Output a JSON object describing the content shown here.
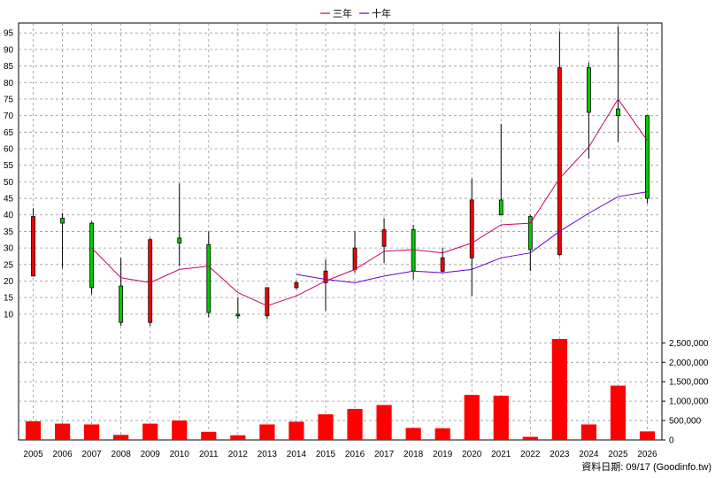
{
  "chart_data": {
    "type": "candlestick-with-volume",
    "source_label": "資料日期: 09/17  (Goodinfo.tw)",
    "legend": [
      {
        "name": "三年",
        "color": "#cc0066"
      },
      {
        "name": "十年",
        "color": "#6600cc"
      }
    ],
    "colors": {
      "up": "#ff0000",
      "down": "#00cc00",
      "volume": "#ff0000",
      "grid": "#999999"
    },
    "years": [
      "2005",
      "2006",
      "2007",
      "2008",
      "2009",
      "2010",
      "2011",
      "2012",
      "2013",
      "2014",
      "2015",
      "2016",
      "2017",
      "2018",
      "2019",
      "2020",
      "2021",
      "2022",
      "2023",
      "2024",
      "2025",
      "2026"
    ],
    "price_axis": {
      "min": 3,
      "max": 98,
      "ticks": [
        10,
        15,
        20,
        25,
        30,
        35,
        40,
        45,
        50,
        55,
        60,
        65,
        70,
        75,
        80,
        85,
        90,
        95
      ],
      "grid": true
    },
    "volume_axis": {
      "min": 0,
      "max": 2600000,
      "ticks": [
        0,
        500000,
        1000000,
        1500000,
        2000000,
        2500000
      ],
      "tick_labels": [
        "0",
        "500,000",
        "1,000,000",
        "1,500,000",
        "2,000,000",
        "2,500,000"
      ]
    },
    "candles": [
      {
        "year": "2005",
        "open": 21.5,
        "close": 39.5,
        "high": 42,
        "low": 21.5
      },
      {
        "year": "2006",
        "open": 39,
        "close": 37.5,
        "high": 40.5,
        "low": 24
      },
      {
        "year": "2007",
        "open": 37.5,
        "close": 18,
        "high": 38,
        "low": 16
      },
      {
        "year": "2008",
        "open": 18.5,
        "close": 7.5,
        "high": 27,
        "low": 6.5
      },
      {
        "year": "2009",
        "open": 7.5,
        "close": 32.5,
        "high": 33,
        "low": 6.5
      },
      {
        "year": "2010",
        "open": 33,
        "close": 31.5,
        "high": 49.5,
        "low": 24.5
      },
      {
        "year": "2011",
        "open": 31,
        "close": 10.5,
        "high": 35,
        "low": 9
      },
      {
        "year": "2012",
        "open": 10,
        "close": 9.5,
        "high": 15,
        "low": 8.5
      },
      {
        "year": "2013",
        "open": 9.5,
        "close": 18,
        "high": 18,
        "low": 8.5
      },
      {
        "year": "2014",
        "open": 18,
        "close": 19.5,
        "high": 20,
        "low": 17.5
      },
      {
        "year": "2015",
        "open": 19.5,
        "close": 23,
        "high": 26.5,
        "low": 11
      },
      {
        "year": "2016",
        "open": 23.5,
        "close": 30,
        "high": 35,
        "low": 22.5
      },
      {
        "year": "2017",
        "open": 30.5,
        "close": 35.5,
        "high": 39,
        "low": 25.5
      },
      {
        "year": "2018",
        "open": 35.5,
        "close": 23,
        "high": 37,
        "low": 20.5
      },
      {
        "year": "2019",
        "open": 23,
        "close": 27,
        "high": 30,
        "low": 22.5
      },
      {
        "year": "2020",
        "open": 27,
        "close": 44.5,
        "high": 51,
        "low": 15.5
      },
      {
        "year": "2021",
        "open": 44.5,
        "close": 40,
        "high": 67.5,
        "low": 40
      },
      {
        "year": "2022",
        "open": 39.5,
        "close": 29.5,
        "high": 40,
        "low": 23
      },
      {
        "year": "2023",
        "open": 28,
        "close": 84.5,
        "high": 95.5,
        "low": 27.5
      },
      {
        "year": "2024",
        "open": 84.5,
        "close": 71,
        "high": 86,
        "low": 57
      },
      {
        "year": "2025",
        "open": 72,
        "close": 70,
        "high": 97,
        "low": 62
      },
      {
        "year": "2026",
        "open": 70,
        "close": 45,
        "high": 70,
        "low": 43.5
      }
    ],
    "series": [
      {
        "name": "三年",
        "color": "#cc0066",
        "values": [
          null,
          null,
          30,
          21,
          19.5,
          23.5,
          24.5,
          16.5,
          12.5,
          15.5,
          20,
          23.5,
          29,
          29.5,
          28.5,
          31.5,
          37,
          37.5,
          51,
          60.5,
          75,
          62.5
        ]
      },
      {
        "name": "十年",
        "color": "#6600cc",
        "values": [
          null,
          null,
          null,
          null,
          null,
          null,
          null,
          null,
          null,
          null,
          null,
          null,
          null,
          null,
          null,
          null,
          null,
          null,
          null,
          null,
          null,
          null
        ]
      },
      {
        "name": "十年_line",
        "color": "#6600cc",
        "values": [
          null,
          null,
          null,
          null,
          null,
          null,
          null,
          null,
          null,
          22,
          20.5,
          19.5,
          21.5,
          23,
          22.5,
          23.5,
          27,
          28.5,
          35,
          40.5,
          45.5,
          47
        ]
      }
    ],
    "volume": [
      480000,
      420000,
      400000,
      130000,
      420000,
      500000,
      210000,
      120000,
      400000,
      470000,
      660000,
      800000,
      900000,
      310000,
      300000,
      1160000,
      1140000,
      80000,
      2600000,
      400000,
      1400000,
      220000
    ]
  }
}
